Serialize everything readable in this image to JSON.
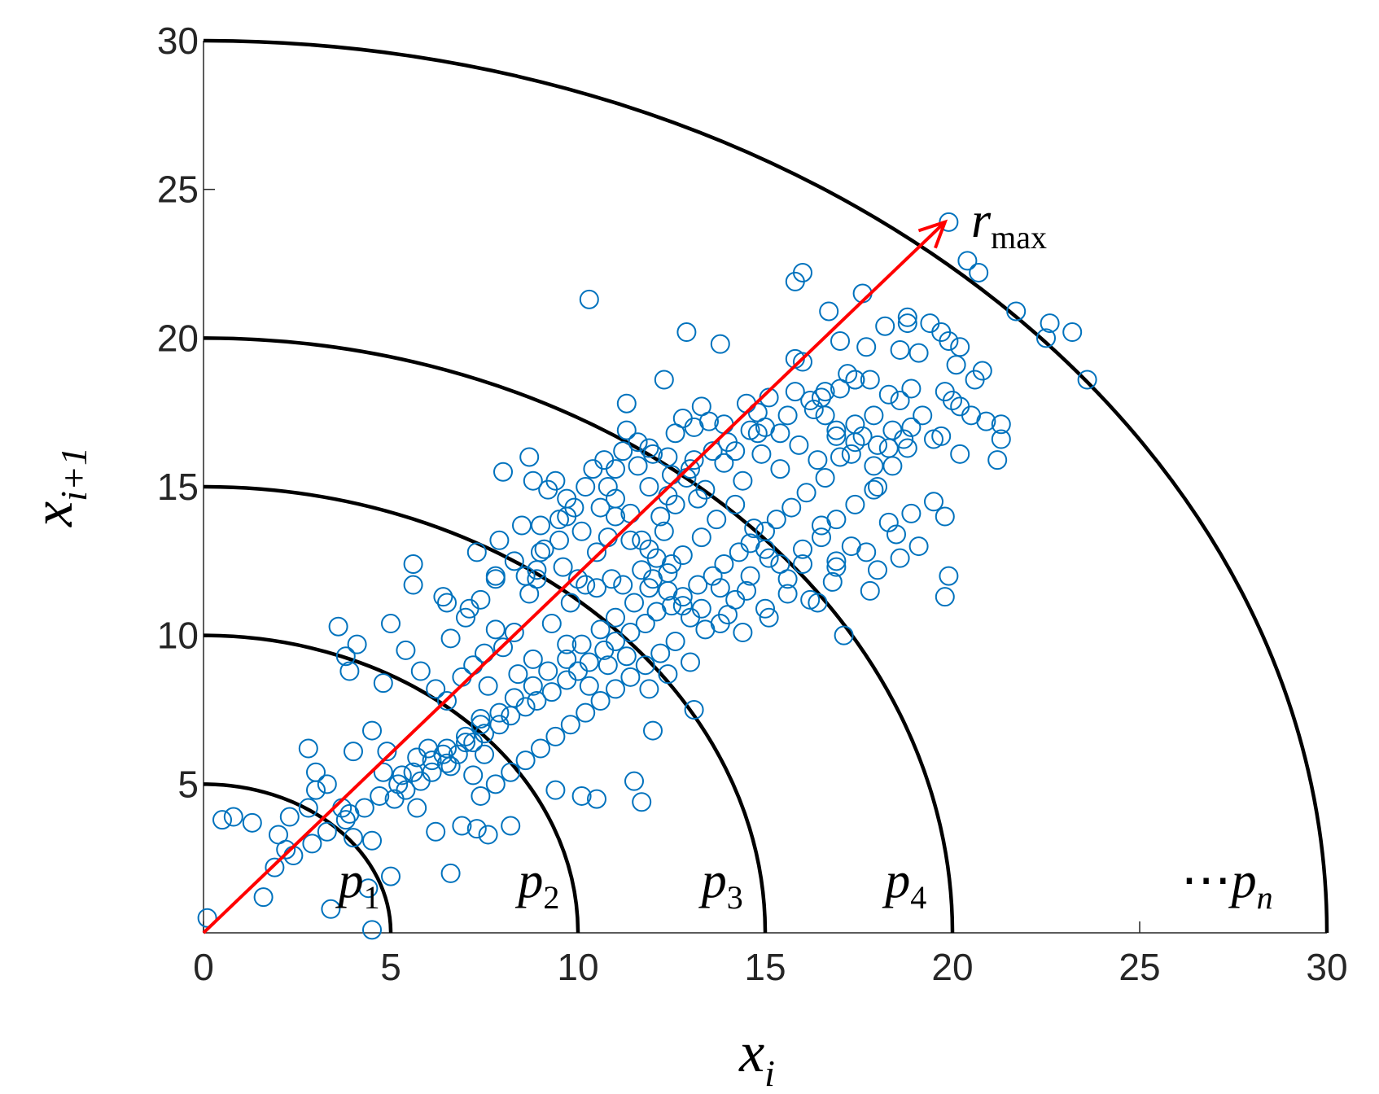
{
  "chart_data": {
    "type": "scatter",
    "xlabel": {
      "base": "x",
      "sub": "i"
    },
    "ylabel": {
      "base": "x",
      "sub": "i+1"
    },
    "xlim": [
      0,
      30
    ],
    "ylim": [
      0,
      30
    ],
    "x_ticks": [
      0,
      5,
      10,
      15,
      20,
      25,
      30
    ],
    "y_ticks": [
      5,
      10,
      15,
      20,
      25,
      30
    ],
    "grid": false,
    "marker": "open-circle",
    "marker_color": "#0072BD",
    "arc_color": "#000000",
    "arrow_color": "#FF0000",
    "arcs": [
      {
        "radius": 5,
        "label_base": "p",
        "label_sub": "1",
        "label_at": [
          3.6,
          1.2
        ]
      },
      {
        "radius": 10,
        "label_base": "p",
        "label_sub": "2",
        "label_at": [
          8.4,
          1.2
        ]
      },
      {
        "radius": 15,
        "label_base": "p",
        "label_sub": "3",
        "label_at": [
          13.3,
          1.2
        ]
      },
      {
        "radius": 20,
        "label_base": "p",
        "label_sub": "4",
        "label_at": [
          18.2,
          1.2
        ]
      },
      {
        "radius": 30,
        "label_base": "p",
        "label_sub": "n",
        "label_prefix": "⋯",
        "label_at": [
          26.1,
          1.2
        ]
      }
    ],
    "arrow": {
      "from": [
        0,
        0
      ],
      "to": [
        19.8,
        23.9
      ],
      "label_base": "r",
      "label_sub": "max",
      "label_at": [
        20.5,
        23.4
      ]
    },
    "points": [
      [
        0.1,
        0.5
      ],
      [
        4.5,
        0.1
      ],
      [
        3.4,
        0.8
      ],
      [
        4.4,
        1.5
      ],
      [
        5.0,
        1.9
      ],
      [
        1.6,
        1.2
      ],
      [
        2.2,
        2.8
      ],
      [
        4.0,
        3.2
      ],
      [
        4.5,
        3.1
      ],
      [
        1.3,
        3.7
      ],
      [
        0.8,
        3.9
      ],
      [
        0.5,
        3.8
      ],
      [
        2.3,
        3.9
      ],
      [
        2.0,
        3.3
      ],
      [
        2.8,
        4.2
      ],
      [
        3.7,
        4.2
      ],
      [
        3.9,
        4.0
      ],
      [
        3.0,
        4.8
      ],
      [
        3.3,
        5.0
      ],
      [
        3.0,
        5.4
      ],
      [
        2.8,
        6.2
      ],
      [
        4.0,
        6.1
      ],
      [
        4.5,
        6.8
      ],
      [
        4.9,
        6.1
      ],
      [
        5.3,
        5.3
      ],
      [
        4.8,
        5.4
      ],
      [
        5.7,
        4.2
      ],
      [
        6.2,
        3.4
      ],
      [
        5.7,
        5.9
      ],
      [
        6.0,
        6.2
      ],
      [
        6.4,
        6.0
      ],
      [
        6.6,
        5.6
      ],
      [
        7.2,
        5.3
      ],
      [
        7.0,
        6.4
      ],
      [
        7.5,
        6.0
      ],
      [
        7.4,
        7.2
      ],
      [
        6.5,
        7.8
      ],
      [
        6.2,
        8.2
      ],
      [
        5.8,
        8.8
      ],
      [
        5.4,
        9.5
      ],
      [
        4.8,
        8.4
      ],
      [
        4.1,
        9.7
      ],
      [
        3.8,
        9.3
      ],
      [
        3.9,
        8.8
      ],
      [
        3.6,
        10.3
      ],
      [
        5.0,
        10.4
      ],
      [
        5.6,
        11.7
      ],
      [
        5.6,
        12.4
      ],
      [
        6.5,
        11.1
      ],
      [
        6.4,
        11.3
      ],
      [
        7.1,
        10.9
      ],
      [
        7.5,
        9.4
      ],
      [
        7.8,
        10.2
      ],
      [
        8.3,
        10.1
      ],
      [
        7.3,
        12.8
      ],
      [
        7.8,
        12.0
      ],
      [
        7.9,
        13.2
      ],
      [
        8.6,
        12.0
      ],
      [
        8.9,
        12.2
      ],
      [
        8.9,
        11.9
      ],
      [
        9.0,
        13.7
      ],
      [
        8.5,
        13.7
      ],
      [
        8.0,
        15.5
      ],
      [
        8.7,
        16.0
      ],
      [
        9.4,
        15.2
      ],
      [
        9.7,
        14.0
      ],
      [
        9.7,
        14.6
      ],
      [
        9.5,
        13.2
      ],
      [
        9.0,
        12.8
      ],
      [
        9.8,
        11.1
      ],
      [
        10.2,
        11.7
      ],
      [
        10.0,
        11.9
      ],
      [
        10.5,
        11.6
      ],
      [
        10.9,
        11.9
      ],
      [
        11.2,
        11.7
      ],
      [
        10.8,
        13.3
      ],
      [
        11.4,
        13.2
      ],
      [
        11.0,
        14.0
      ],
      [
        11.7,
        13.2
      ],
      [
        11.9,
        12.9
      ],
      [
        12.1,
        12.6
      ],
      [
        12.5,
        12.4
      ],
      [
        12.3,
        13.5
      ],
      [
        12.2,
        14.0
      ],
      [
        12.6,
        14.4
      ],
      [
        13.2,
        14.6
      ],
      [
        13.0,
        15.6
      ],
      [
        12.5,
        15.4
      ],
      [
        12.4,
        16.0
      ],
      [
        11.9,
        16.3
      ],
      [
        11.6,
        16.5
      ],
      [
        11.3,
        16.9
      ],
      [
        11.0,
        15.6
      ],
      [
        10.8,
        15.0
      ],
      [
        11.3,
        17.8
      ],
      [
        12.3,
        18.6
      ],
      [
        12.8,
        17.3
      ],
      [
        13.1,
        17.0
      ],
      [
        13.5,
        17.2
      ],
      [
        13.9,
        17.1
      ],
      [
        14.2,
        16.2
      ],
      [
        14.8,
        16.8
      ],
      [
        15.0,
        17.0
      ],
      [
        15.4,
        16.8
      ],
      [
        15.6,
        17.4
      ],
      [
        15.8,
        18.2
      ],
      [
        16.0,
        19.2
      ],
      [
        15.8,
        19.3
      ],
      [
        14.5,
        17.8
      ],
      [
        13.3,
        17.7
      ],
      [
        12.9,
        20.2
      ],
      [
        13.8,
        19.8
      ],
      [
        10.3,
        21.3
      ],
      [
        15.8,
        21.9
      ],
      [
        16.0,
        22.2
      ],
      [
        17.6,
        21.5
      ],
      [
        16.7,
        20.9
      ],
      [
        17.0,
        19.9
      ],
      [
        17.7,
        19.7
      ],
      [
        18.2,
        20.4
      ],
      [
        18.8,
        20.5
      ],
      [
        19.1,
        19.5
      ],
      [
        19.4,
        20.5
      ],
      [
        19.7,
        20.2
      ],
      [
        19.9,
        19.9
      ],
      [
        20.2,
        19.7
      ],
      [
        20.1,
        19.1
      ],
      [
        20.8,
        18.9
      ],
      [
        20.6,
        18.6
      ],
      [
        19.8,
        18.2
      ],
      [
        20.0,
        17.9
      ],
      [
        20.2,
        17.7
      ],
      [
        20.5,
        17.4
      ],
      [
        20.9,
        17.2
      ],
      [
        21.3,
        16.6
      ],
      [
        20.2,
        16.1
      ],
      [
        19.7,
        16.7
      ],
      [
        19.5,
        16.6
      ],
      [
        19.2,
        17.4
      ],
      [
        18.9,
        17.0
      ],
      [
        18.7,
        16.6
      ],
      [
        18.3,
        16.3
      ],
      [
        18.0,
        16.4
      ],
      [
        17.6,
        16.7
      ],
      [
        17.3,
        16.1
      ],
      [
        16.9,
        16.7
      ],
      [
        16.6,
        17.4
      ],
      [
        16.2,
        17.9
      ],
      [
        16.6,
        18.2
      ],
      [
        17.0,
        18.3
      ],
      [
        17.4,
        18.6
      ],
      [
        17.8,
        18.6
      ],
      [
        18.3,
        18.1
      ],
      [
        18.6,
        17.9
      ],
      [
        18.9,
        18.3
      ],
      [
        17.4,
        17.1
      ],
      [
        17.0,
        16.0
      ],
      [
        16.6,
        15.3
      ],
      [
        16.1,
        14.8
      ],
      [
        15.7,
        14.3
      ],
      [
        15.3,
        13.9
      ],
      [
        15.0,
        13.5
      ],
      [
        14.6,
        13.1
      ],
      [
        14.3,
        12.8
      ],
      [
        13.9,
        12.4
      ],
      [
        13.6,
        12.0
      ],
      [
        13.2,
        11.7
      ],
      [
        12.8,
        11.3
      ],
      [
        12.5,
        11.0
      ],
      [
        12.1,
        10.8
      ],
      [
        11.8,
        10.4
      ],
      [
        11.4,
        10.1
      ],
      [
        11.0,
        9.8
      ],
      [
        10.7,
        9.5
      ],
      [
        10.3,
        9.1
      ],
      [
        10.0,
        8.8
      ],
      [
        9.7,
        8.5
      ],
      [
        9.3,
        8.1
      ],
      [
        8.9,
        7.8
      ],
      [
        8.6,
        7.6
      ],
      [
        8.2,
        7.3
      ],
      [
        7.9,
        7.0
      ],
      [
        7.5,
        6.7
      ],
      [
        7.2,
        6.4
      ],
      [
        6.8,
        6.0
      ],
      [
        6.5,
        5.7
      ],
      [
        6.1,
        5.4
      ],
      [
        5.8,
        5.1
      ],
      [
        5.4,
        4.8
      ],
      [
        5.1,
        4.5
      ],
      [
        14.0,
        10.7
      ],
      [
        14.5,
        11.5
      ],
      [
        15.0,
        10.9
      ],
      [
        15.6,
        11.9
      ],
      [
        16.2,
        11.2
      ],
      [
        16.9,
        12.5
      ],
      [
        17.3,
        13.0
      ],
      [
        17.8,
        11.5
      ],
      [
        18.3,
        13.8
      ],
      [
        18.5,
        13.4
      ],
      [
        18.9,
        14.1
      ],
      [
        19.5,
        14.5
      ],
      [
        19.9,
        12.0
      ],
      [
        19.8,
        11.3
      ],
      [
        19.8,
        14.0
      ],
      [
        17.9,
        15.7
      ],
      [
        18.0,
        15.0
      ],
      [
        16.5,
        13.7
      ],
      [
        16.0,
        12.9
      ],
      [
        15.4,
        12.4
      ],
      [
        15.0,
        12.9
      ],
      [
        14.6,
        12.0
      ],
      [
        14.2,
        11.2
      ],
      [
        13.8,
        11.6
      ],
      [
        13.4,
        10.2
      ],
      [
        13.0,
        10.6
      ],
      [
        12.6,
        9.8
      ],
      [
        12.2,
        9.4
      ],
      [
        11.8,
        9.0
      ],
      [
        11.4,
        8.6
      ],
      [
        11.0,
        8.2
      ],
      [
        10.6,
        7.8
      ],
      [
        10.2,
        7.4
      ],
      [
        9.8,
        7.0
      ],
      [
        9.4,
        6.6
      ],
      [
        9.0,
        6.2
      ],
      [
        8.6,
        5.8
      ],
      [
        8.2,
        5.4
      ],
      [
        7.8,
        5.0
      ],
      [
        7.4,
        4.6
      ],
      [
        6.9,
        3.6
      ],
      [
        7.6,
        3.3
      ],
      [
        6.6,
        2.0
      ],
      [
        7.3,
        3.5
      ],
      [
        8.2,
        3.6
      ],
      [
        9.4,
        4.8
      ],
      [
        10.1,
        4.6
      ],
      [
        10.5,
        4.5
      ],
      [
        11.5,
        5.1
      ],
      [
        11.7,
        4.4
      ],
      [
        12.0,
        6.8
      ],
      [
        13.1,
        7.5
      ],
      [
        13.0,
        9.1
      ],
      [
        12.4,
        8.7
      ],
      [
        11.9,
        8.2
      ],
      [
        11.3,
        9.3
      ],
      [
        10.8,
        9.0
      ],
      [
        10.3,
        8.3
      ],
      [
        9.7,
        9.7
      ],
      [
        9.3,
        10.4
      ],
      [
        8.8,
        9.2
      ],
      [
        8.4,
        8.7
      ],
      [
        8.0,
        9.6
      ],
      [
        7.6,
        8.3
      ],
      [
        7.2,
        9.0
      ],
      [
        6.9,
        8.6
      ],
      [
        6.6,
        9.9
      ],
      [
        7.0,
        10.6
      ],
      [
        7.4,
        11.2
      ],
      [
        7.8,
        11.9
      ],
      [
        8.3,
        12.5
      ],
      [
        8.7,
        11.4
      ],
      [
        9.1,
        12.9
      ],
      [
        9.6,
        12.3
      ],
      [
        10.1,
        13.5
      ],
      [
        10.5,
        12.8
      ],
      [
        11.0,
        14.6
      ],
      [
        11.4,
        14.1
      ],
      [
        11.9,
        15.0
      ],
      [
        12.4,
        14.7
      ],
      [
        12.9,
        15.3
      ],
      [
        13.4,
        14.9
      ],
      [
        13.9,
        15.8
      ],
      [
        14.4,
        15.2
      ],
      [
        14.9,
        16.1
      ],
      [
        15.4,
        15.6
      ],
      [
        15.9,
        16.4
      ],
      [
        16.4,
        15.9
      ],
      [
        16.9,
        16.9
      ],
      [
        17.4,
        16.5
      ],
      [
        17.9,
        17.4
      ],
      [
        18.4,
        16.9
      ],
      [
        18.8,
        16.3
      ],
      [
        18.4,
        15.7
      ],
      [
        17.9,
        14.9
      ],
      [
        17.4,
        14.4
      ],
      [
        16.9,
        13.9
      ],
      [
        16.5,
        13.3
      ],
      [
        16.0,
        12.4
      ],
      [
        15.6,
        11.4
      ],
      [
        15.1,
        12.6
      ],
      [
        14.7,
        13.6
      ],
      [
        14.2,
        14.4
      ],
      [
        13.7,
        13.9
      ],
      [
        13.3,
        13.3
      ],
      [
        12.8,
        12.7
      ],
      [
        12.4,
        12.1
      ],
      [
        11.9,
        11.6
      ],
      [
        11.5,
        11.1
      ],
      [
        11.0,
        10.6
      ],
      [
        10.6,
        10.2
      ],
      [
        10.1,
        9.7
      ],
      [
        9.7,
        9.2
      ],
      [
        9.2,
        8.8
      ],
      [
        8.8,
        8.3
      ],
      [
        8.3,
        7.9
      ],
      [
        7.9,
        7.4
      ],
      [
        7.4,
        7.0
      ],
      [
        7.0,
        6.6
      ],
      [
        6.5,
        6.2
      ],
      [
        6.1,
        5.8
      ],
      [
        5.6,
        5.4
      ],
      [
        5.2,
        5.0
      ],
      [
        4.7,
        4.6
      ],
      [
        4.3,
        4.2
      ],
      [
        3.8,
        3.8
      ],
      [
        3.3,
        3.4
      ],
      [
        2.9,
        3.0
      ],
      [
        2.4,
        2.6
      ],
      [
        1.9,
        2.2
      ],
      [
        21.7,
        20.9
      ],
      [
        22.6,
        20.5
      ],
      [
        22.5,
        20.0
      ],
      [
        23.2,
        20.2
      ],
      [
        23.6,
        18.6
      ],
      [
        20.4,
        22.6
      ],
      [
        20.7,
        22.2
      ],
      [
        19.9,
        23.9
      ],
      [
        21.2,
        15.9
      ],
      [
        21.3,
        17.1
      ],
      [
        18.6,
        19.6
      ],
      [
        18.8,
        20.7
      ],
      [
        17.2,
        18.8
      ],
      [
        17.4,
        18.6
      ],
      [
        16.5,
        18.0
      ],
      [
        16.3,
        17.6
      ],
      [
        15.1,
        18.0
      ],
      [
        14.8,
        17.5
      ],
      [
        14.6,
        16.9
      ],
      [
        14.0,
        16.5
      ],
      [
        13.6,
        16.2
      ],
      [
        13.1,
        15.9
      ],
      [
        12.6,
        16.8
      ],
      [
        12.0,
        16.1
      ],
      [
        11.6,
        15.7
      ],
      [
        11.2,
        16.2
      ],
      [
        10.7,
        15.9
      ],
      [
        10.4,
        15.6
      ],
      [
        9.9,
        14.3
      ],
      [
        9.5,
        13.9
      ],
      [
        9.2,
        14.9
      ],
      [
        8.8,
        15.2
      ],
      [
        10.2,
        15.0
      ],
      [
        10.6,
        14.3
      ],
      [
        11.7,
        12.2
      ],
      [
        12.0,
        11.9
      ],
      [
        12.4,
        11.5
      ],
      [
        12.8,
        11.0
      ],
      [
        13.3,
        10.9
      ],
      [
        13.8,
        10.4
      ],
      [
        14.4,
        10.1
      ],
      [
        15.1,
        10.6
      ],
      [
        16.4,
        11.1
      ],
      [
        17.1,
        10.0
      ],
      [
        16.8,
        11.8
      ],
      [
        16.9,
        12.3
      ],
      [
        17.7,
        12.8
      ],
      [
        18.0,
        12.2
      ],
      [
        18.6,
        12.6
      ],
      [
        19.1,
        13.0
      ]
    ]
  }
}
